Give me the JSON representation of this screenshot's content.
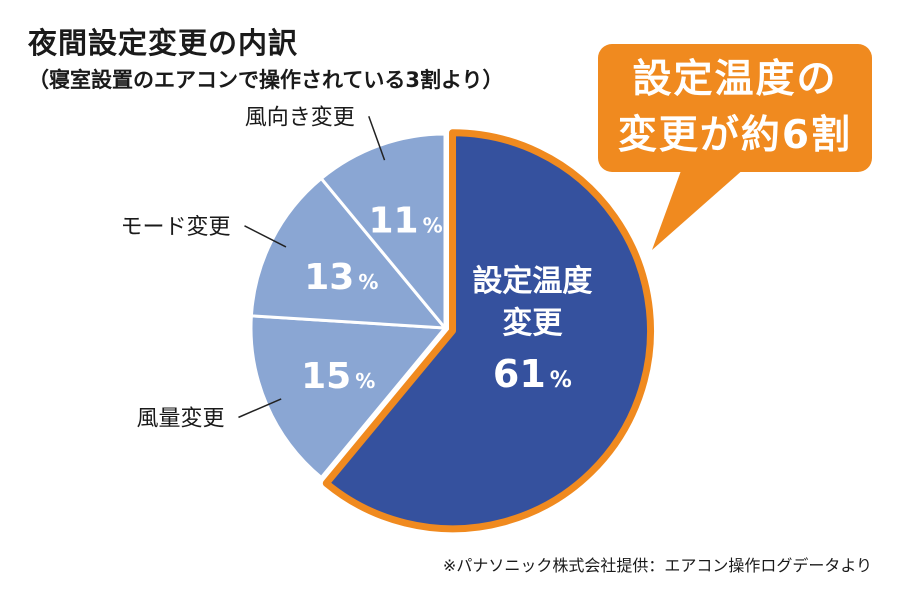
{
  "title": "夜間設定変更の内訳",
  "subtitle": "（寝室設置のエアコンで操作されている3割より）",
  "callout": {
    "line1": "設定温度の",
    "line2": "変更が約6割"
  },
  "source": "※パナソニック株式会社提供：エアコン操作ログデータより",
  "colors": {
    "highlight_slice": "#35519e",
    "other_slices": "#8aa6d3",
    "highlight_border": "#f08a1f",
    "callout_bg": "#f08a1f",
    "label_text": "#ffffff"
  },
  "chart_data": {
    "type": "pie",
    "title": "夜間設定変更の内訳",
    "subtitle": "（寝室設置のエアコンで操作されている3割より）",
    "unit": "%",
    "slices": [
      {
        "label": "設定温度変更",
        "label_lines": [
          "設定温度",
          "変更"
        ],
        "value": 61,
        "display": "61",
        "highlighted": true
      },
      {
        "label": "風量変更",
        "value": 15,
        "display": "15",
        "highlighted": false
      },
      {
        "label": "モード変更",
        "value": 13,
        "display": "13",
        "highlighted": false
      },
      {
        "label": "風向き変更",
        "value": 11,
        "display": "11",
        "highlighted": false
      }
    ]
  }
}
